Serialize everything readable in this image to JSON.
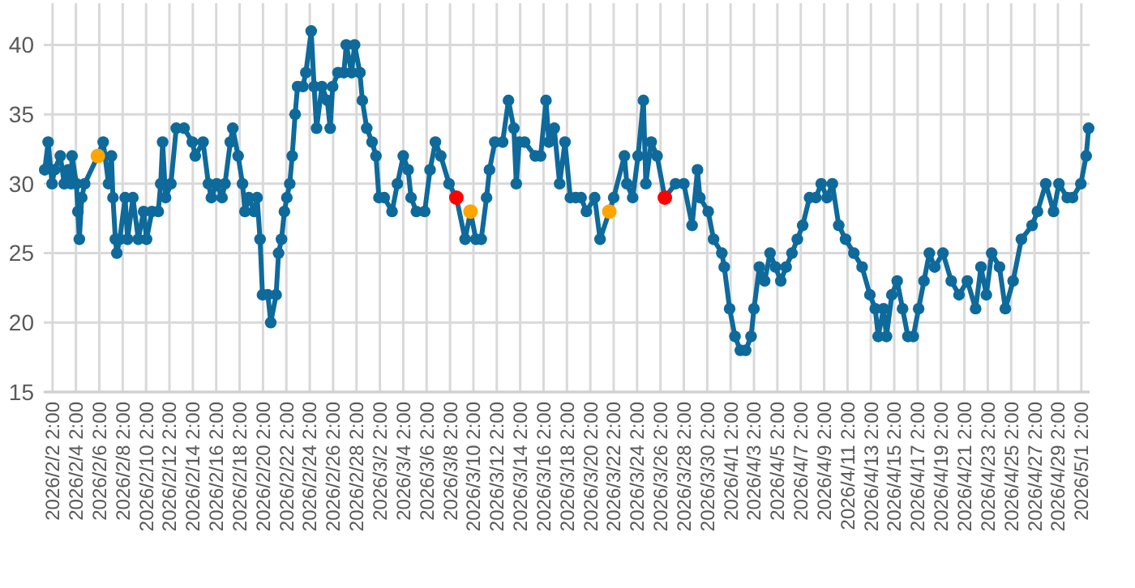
{
  "chart_data": {
    "type": "line",
    "xlim": [
      "2026-02-01T08:00",
      "2026-05-01T19:00"
    ],
    "ylim": [
      15,
      43
    ],
    "yticks": [
      15,
      20,
      25,
      30,
      35,
      40
    ],
    "xticks": [
      {
        "value": "2026-02-02T02:00",
        "label": "2026/2/2 2:00"
      },
      {
        "value": "2026-02-04T02:00",
        "label": "2026/2/4 2:00"
      },
      {
        "value": "2026-02-06T02:00",
        "label": "2026/2/6 2:00"
      },
      {
        "value": "2026-02-08T02:00",
        "label": "2026/2/8 2:00"
      },
      {
        "value": "2026-02-10T02:00",
        "label": "2026/2/10 2:00"
      },
      {
        "value": "2026-02-12T02:00",
        "label": "2026/2/12 2:00"
      },
      {
        "value": "2026-02-14T02:00",
        "label": "2026/2/14 2:00"
      },
      {
        "value": "2026-02-16T02:00",
        "label": "2026/2/16 2:00"
      },
      {
        "value": "2026-02-18T02:00",
        "label": "2026/2/18 2:00"
      },
      {
        "value": "2026-02-20T02:00",
        "label": "2026/2/20 2:00"
      },
      {
        "value": "2026-02-22T02:00",
        "label": "2026/2/22 2:00"
      },
      {
        "value": "2026-02-24T02:00",
        "label": "2026/2/24 2:00"
      },
      {
        "value": "2026-02-26T02:00",
        "label": "2026/2/26 2:00"
      },
      {
        "value": "2026-02-28T02:00",
        "label": "2026/2/28 2:00"
      },
      {
        "value": "2026-03-02T02:00",
        "label": "2026/3/2 2:00"
      },
      {
        "value": "2026-03-04T02:00",
        "label": "2026/3/4 2:00"
      },
      {
        "value": "2026-03-06T02:00",
        "label": "2026/3/6 2:00"
      },
      {
        "value": "2026-03-08T02:00",
        "label": "2026/3/8 2:00"
      },
      {
        "value": "2026-03-10T02:00",
        "label": "2026/3/10 2:00"
      },
      {
        "value": "2026-03-12T02:00",
        "label": "2026/3/12 2:00"
      },
      {
        "value": "2026-03-14T02:00",
        "label": "2026/3/14 2:00"
      },
      {
        "value": "2026-03-16T02:00",
        "label": "2026/3/16 2:00"
      },
      {
        "value": "2026-03-18T02:00",
        "label": "2026/3/18 2:00"
      },
      {
        "value": "2026-03-20T02:00",
        "label": "2026/3/20 2:00"
      },
      {
        "value": "2026-03-22T02:00",
        "label": "2026/3/22 2:00"
      },
      {
        "value": "2026-03-24T02:00",
        "label": "2026/3/24 2:00"
      },
      {
        "value": "2026-03-26T02:00",
        "label": "2026/3/26 2:00"
      },
      {
        "value": "2026-03-28T02:00",
        "label": "2026/3/28 2:00"
      },
      {
        "value": "2026-03-30T02:00",
        "label": "2026/3/30 2:00"
      },
      {
        "value": "2026-04-01T02:00",
        "label": "2026/4/1 2:00"
      },
      {
        "value": "2026-04-03T02:00",
        "label": "2026/4/3 2:00"
      },
      {
        "value": "2026-04-05T02:00",
        "label": "2026/4/5 2:00"
      },
      {
        "value": "2026-04-07T02:00",
        "label": "2026/4/7 2:00"
      },
      {
        "value": "2026-04-09T02:00",
        "label": "2026/4/9 2:00"
      },
      {
        "value": "2026-04-11T02:00",
        "label": "2026/4/11 2:00"
      },
      {
        "value": "2026-04-13T02:00",
        "label": "2026/4/13 2:00"
      },
      {
        "value": "2026-04-15T02:00",
        "label": "2026/4/15 2:00"
      },
      {
        "value": "2026-04-17T02:00",
        "label": "2026/4/17 2:00"
      },
      {
        "value": "2026-04-19T02:00",
        "label": "2026/4/19 2:00"
      },
      {
        "value": "2026-04-21T02:00",
        "label": "2026/4/21 2:00"
      },
      {
        "value": "2026-04-23T02:00",
        "label": "2026/4/23 2:00"
      },
      {
        "value": "2026-04-25T02:00",
        "label": "2026/4/25 2:00"
      },
      {
        "value": "2026-04-27T02:00",
        "label": "2026/4/27 2:00"
      },
      {
        "value": "2026-04-29T02:00",
        "label": "2026/4/29 2:00"
      },
      {
        "value": "2026-05-01T02:00",
        "label": "2026/5/1 2:00"
      }
    ],
    "grid": true,
    "marker": "circle",
    "line_style": "solid",
    "series": [
      {
        "color": "#0e6a9b",
        "x": [
          "2026-02-01T10:00",
          "2026-02-01T17:00",
          "2026-02-02T01:00",
          "2026-02-02T06:00",
          "2026-02-02T18:00",
          "2026-02-03T02:00",
          "2026-02-03T10:00",
          "2026-02-03T16:00",
          "2026-02-03T18:00",
          "2026-02-04T03:00",
          "2026-02-04T06:00",
          "2026-02-04T09:00",
          "2026-02-04T14:00",
          "2026-02-04T20:00",
          "2026-02-05T23:00",
          "2026-02-06T10:00",
          "2026-02-06T21:00",
          "2026-02-07T03:00",
          "2026-02-07T06:00",
          "2026-02-07T11:00",
          "2026-02-07T14:00",
          "2026-02-07T20:00",
          "2026-02-08T07:00",
          "2026-02-08T12:00",
          "2026-02-08T23:00",
          "2026-02-09T10:00",
          "2026-02-09T21:00",
          "2026-02-10T03:00",
          "2026-02-10T14:00",
          "2026-02-11T03:00",
          "2026-02-11T08:00",
          "2026-02-11T12:00",
          "2026-02-11T18:00",
          "2026-02-12T05:00",
          "2026-02-12T16:00",
          "2026-02-13T08:00",
          "2026-02-14T01:00",
          "2026-02-14T07:00",
          "2026-02-14T23:00",
          "2026-02-15T10:00",
          "2026-02-15T16:00",
          "2026-02-16T03:00",
          "2026-02-16T14:00",
          "2026-02-16T20:00",
          "2026-02-17T07:00",
          "2026-02-17T12:00",
          "2026-02-17T23:00",
          "2026-02-18T08:00",
          "2026-02-18T13:00",
          "2026-02-18T21:00",
          "2026-02-19T08:00",
          "2026-02-19T14:00",
          "2026-02-19T20:00",
          "2026-02-20T01:00",
          "2026-02-20T12:00",
          "2026-02-20T18:00",
          "2026-02-21T05:00",
          "2026-02-21T10:00",
          "2026-02-21T16:00",
          "2026-02-21T22:00",
          "2026-02-22T03:00",
          "2026-02-22T09:00",
          "2026-02-22T14:00",
          "2026-02-22T20:00",
          "2026-02-23T01:00",
          "2026-02-23T12:00",
          "2026-02-23T18:00",
          "2026-02-24T05:00",
          "2026-02-24T11:00",
          "2026-02-24T16:00",
          "2026-02-25T03:00",
          "2026-02-25T14:00",
          "2026-02-25T20:00",
          "2026-02-26T01:00",
          "2026-02-26T12:00",
          "2026-02-27T00:00",
          "2026-02-27T05:00",
          "2026-02-27T16:00",
          "2026-02-27T22:00",
          "2026-02-28T09:00",
          "2026-02-28T14:00",
          "2026-02-28T23:00",
          "2026-03-01T10:00",
          "2026-03-01T18:00",
          "2026-03-02T00:00",
          "2026-03-02T11:00",
          "2026-03-03T03:00",
          "2026-03-03T14:00",
          "2026-03-04T02:00",
          "2026-03-04T12:00",
          "2026-03-04T18:00",
          "2026-03-05T05:00",
          "2026-03-05T22:00",
          "2026-03-06T09:00",
          "2026-03-06T20:00",
          "2026-03-07T07:00",
          "2026-03-08T00:00",
          "2026-03-08T15:00",
          "2026-03-09T09:00",
          "2026-03-09T20:00",
          "2026-03-10T07:00",
          "2026-03-10T18:00",
          "2026-03-11T05:00",
          "2026-03-11T11:00",
          "2026-03-11T22:00",
          "2026-03-12T14:00",
          "2026-03-13T02:00",
          "2026-03-13T13:00",
          "2026-03-13T18:00",
          "2026-03-14T00:00",
          "2026-03-14T11:00",
          "2026-03-15T09:00",
          "2026-03-15T20:00",
          "2026-03-16T07:00",
          "2026-03-16T13:00",
          "2026-03-17T00:00",
          "2026-03-17T11:00",
          "2026-03-17T22:00",
          "2026-03-18T09:00",
          "2026-03-18T20:00",
          "2026-03-19T07:00",
          "2026-03-19T18:00",
          "2026-03-20T11:00",
          "2026-03-20T22:00",
          "2026-03-21T17:00",
          "2026-03-22T02:00",
          "2026-03-23T00:00",
          "2026-03-23T05:00",
          "2026-03-23T17:00",
          "2026-03-24T04:00",
          "2026-03-24T15:00",
          "2026-03-24T20:00",
          "2026-03-25T07:00",
          "2026-03-25T19:00",
          "2026-03-26T11:00",
          "2026-03-27T09:00",
          "2026-03-28T02:00",
          "2026-03-28T19:00",
          "2026-03-29T06:00",
          "2026-03-29T11:00",
          "2026-03-30T04:00",
          "2026-03-30T15:00",
          "2026-03-31T08:00",
          "2026-03-31T13:00",
          "2026-04-01T00:00",
          "2026-04-01T11:00",
          "2026-04-01T22:00",
          "2026-04-02T09:00",
          "2026-04-02T20:00",
          "2026-04-03T02:00",
          "2026-04-03T13:00",
          "2026-04-04T00:00",
          "2026-04-04T11:00",
          "2026-04-04T22:00",
          "2026-04-05T09:00",
          "2026-04-05T20:00",
          "2026-04-06T08:00",
          "2026-04-06T19:00",
          "2026-04-07T06:00",
          "2026-04-07T20:00",
          "2026-04-08T09:00",
          "2026-04-08T20:00",
          "2026-04-09T08:00",
          "2026-04-09T19:00",
          "2026-04-10T08:00",
          "2026-04-10T22:00",
          "2026-04-11T15:00",
          "2026-04-12T08:00",
          "2026-04-13T00:00",
          "2026-04-13T11:00",
          "2026-04-13T17:00",
          "2026-04-14T04:00",
          "2026-04-14T10:00",
          "2026-04-14T21:00",
          "2026-04-15T08:00",
          "2026-04-15T19:00",
          "2026-04-16T06:00",
          "2026-04-16T17:00",
          "2026-04-17T04:00",
          "2026-04-17T15:00",
          "2026-04-18T02:00",
          "2026-04-18T13:00",
          "2026-04-19T06:00",
          "2026-04-19T23:00",
          "2026-04-20T15:00",
          "2026-04-21T08:00",
          "2026-04-22T01:00",
          "2026-04-22T12:00",
          "2026-04-22T23:00",
          "2026-04-23T10:00",
          "2026-04-24T02:00",
          "2026-04-24T14:00",
          "2026-04-25T06:00",
          "2026-04-25T23:00",
          "2026-04-26T21:00",
          "2026-04-27T08:00",
          "2026-04-28T01:00",
          "2026-04-28T17:00",
          "2026-04-29T04:00",
          "2026-04-29T21:00",
          "2026-04-30T08:00",
          "2026-05-01T01:00",
          "2026-05-01T12:00",
          "2026-05-01T17:00"
        ],
        "values": [
          31,
          33,
          30,
          31,
          32,
          30,
          31,
          30,
          32,
          30,
          28,
          26,
          29,
          30,
          32,
          33,
          30,
          32,
          29,
          26,
          25,
          26,
          29,
          26,
          29,
          26,
          28,
          26,
          28,
          28,
          30,
          33,
          29,
          30,
          34,
          34,
          33,
          32,
          33,
          30,
          29,
          30,
          29,
          30,
          33,
          34,
          32,
          30,
          28,
          29,
          28,
          29,
          26,
          22,
          22,
          20,
          22,
          25,
          26,
          28,
          29,
          30,
          32,
          35,
          37,
          37,
          38,
          41,
          37,
          34,
          37,
          36,
          34,
          37,
          38,
          38,
          40,
          38,
          40,
          38,
          36,
          34,
          33,
          32,
          29,
          29,
          28,
          30,
          32,
          31,
          29,
          28,
          28,
          31,
          33,
          32,
          30,
          29,
          26,
          28,
          26,
          26,
          29,
          31,
          33,
          33,
          36,
          34,
          30,
          33,
          33,
          32,
          32,
          36,
          33,
          34,
          30,
          33,
          29,
          29,
          29,
          28,
          29,
          26,
          28,
          29,
          32,
          30,
          29,
          32,
          36,
          30,
          33,
          32,
          29,
          30,
          30,
          27,
          31,
          29,
          28,
          26,
          25,
          24,
          21,
          19,
          18,
          18,
          19,
          21,
          24,
          23,
          25,
          24,
          23,
          24,
          25,
          26,
          27,
          29,
          29,
          30,
          29,
          30,
          27,
          26,
          25,
          24,
          22,
          21,
          19,
          21,
          19,
          22,
          23,
          21,
          19,
          19,
          21,
          23,
          25,
          24,
          25,
          23,
          22,
          23,
          21,
          24,
          22,
          25,
          24,
          21,
          23,
          26,
          27,
          28,
          30,
          28,
          30,
          29,
          29,
          30,
          32,
          34
        ]
      },
      {
        "type": "scatter",
        "color": "#ffa500",
        "x": [
          "2026-02-05T23:00",
          "2026-03-09T20:00",
          "2026-03-21T17:00"
        ],
        "values": [
          32,
          28,
          28
        ]
      },
      {
        "type": "scatter",
        "color": "#ff0000",
        "x": [
          "2026-03-08T15:00",
          "2026-03-26T11:00"
        ],
        "values": [
          29,
          29
        ]
      }
    ]
  }
}
